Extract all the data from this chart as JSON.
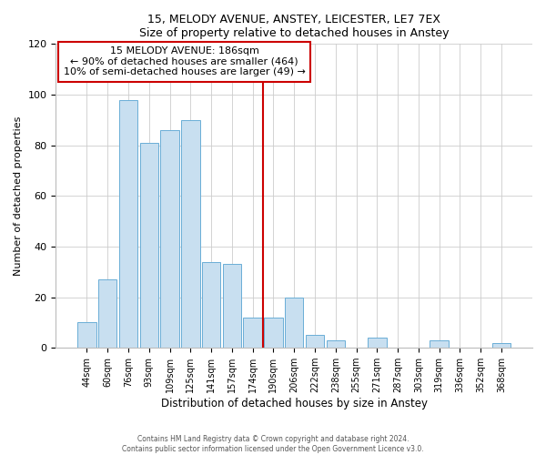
{
  "title1": "15, MELODY AVENUE, ANSTEY, LEICESTER, LE7 7EX",
  "title2": "Size of property relative to detached houses in Anstey",
  "xlabel": "Distribution of detached houses by size in Anstey",
  "ylabel": "Number of detached properties",
  "bar_labels": [
    "44sqm",
    "60sqm",
    "76sqm",
    "93sqm",
    "109sqm",
    "125sqm",
    "141sqm",
    "157sqm",
    "174sqm",
    "190sqm",
    "206sqm",
    "222sqm",
    "238sqm",
    "255sqm",
    "271sqm",
    "287sqm",
    "303sqm",
    "319sqm",
    "336sqm",
    "352sqm",
    "368sqm"
  ],
  "bar_values": [
    10,
    27,
    98,
    81,
    86,
    90,
    34,
    33,
    12,
    12,
    20,
    5,
    3,
    0,
    4,
    0,
    0,
    3,
    0,
    0,
    2
  ],
  "bar_color": "#c8dff0",
  "bar_edge_color": "#6aaed6",
  "vline_x": 8.5,
  "vline_color": "#cc0000",
  "annotation_title": "15 MELODY AVENUE: 186sqm",
  "annotation_line1": "← 90% of detached houses are smaller (464)",
  "annotation_line2": "10% of semi-detached houses are larger (49) →",
  "annotation_box_color": "#ffffff",
  "annotation_box_edge_color": "#cc0000",
  "ylim": [
    0,
    120
  ],
  "yticks": [
    0,
    20,
    40,
    60,
    80,
    100,
    120
  ],
  "footer1": "Contains HM Land Registry data © Crown copyright and database right 2024.",
  "footer2": "Contains public sector information licensed under the Open Government Licence v3.0.",
  "bg_color": "#ffffff",
  "grid_color": "#cccccc"
}
